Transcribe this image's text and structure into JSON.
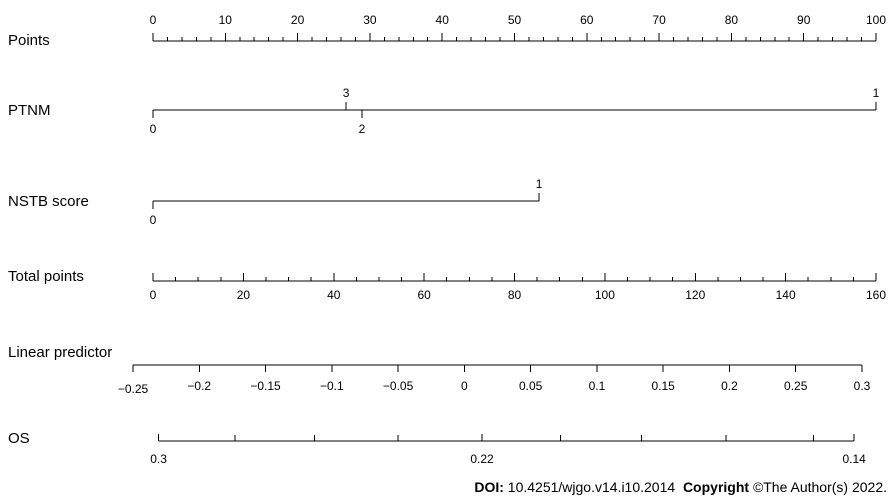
{
  "chart_data": {
    "type": "nomogram",
    "title": "",
    "rows": [
      {
        "label": "Points",
        "kind": "points",
        "min": 0,
        "max": 100,
        "major_ticks": [
          0,
          10,
          20,
          30,
          40,
          50,
          60,
          70,
          80,
          90,
          100
        ],
        "tick_labels": [
          "0",
          "10",
          "20",
          "30",
          "40",
          "50",
          "60",
          "70",
          "80",
          "90",
          "100"
        ],
        "minor_step": 2
      },
      {
        "label": "PTNM",
        "kind": "variable",
        "levels": [
          {
            "label": "0",
            "points": 0,
            "side": "below"
          },
          {
            "label": "3",
            "points": 26.7,
            "side": "above"
          },
          {
            "label": "2",
            "points": 28.9,
            "side": "below"
          },
          {
            "label": "1",
            "points": 100,
            "side": "above"
          }
        ]
      },
      {
        "label": "NSTB score",
        "kind": "variable",
        "levels": [
          {
            "label": "0",
            "points": 0,
            "side": "below"
          },
          {
            "label": "1",
            "points": 53.4,
            "side": "above"
          }
        ]
      },
      {
        "label": "Total points",
        "kind": "total",
        "min": 0,
        "max": 160,
        "major_ticks": [
          0,
          20,
          40,
          60,
          80,
          100,
          120,
          140,
          160
        ],
        "tick_labels": [
          "0",
          "20",
          "40",
          "60",
          "80",
          "100",
          "120",
          "140",
          "160"
        ],
        "minor_step": 5
      },
      {
        "label": "Linear predictor",
        "kind": "linear",
        "min": -0.25,
        "max": 0.3,
        "ticks": [
          -0.25,
          -0.2,
          -0.15,
          -0.1,
          -0.05,
          0,
          0.05,
          0.1,
          0.15,
          0.2,
          0.25,
          0.3
        ],
        "tick_labels": [
          "−0.25",
          "−0.2",
          "−0.15",
          "−0.1",
          "−0.05",
          "0",
          "0.05",
          "0.1",
          "0.15",
          "0.2",
          "0.25",
          "0.3"
        ]
      },
      {
        "label": "OS",
        "kind": "probability",
        "labeled_ticks": [
          {
            "label": "0.3",
            "lp": -0.2307
          },
          {
            "label": "0.22",
            "lp": 0.0133
          },
          {
            "label": "0.14",
            "lp": 0.2941
          }
        ],
        "unlabeled_ticks_lp": [
          -0.173,
          -0.113,
          -0.05,
          0.0725,
          0.1335,
          0.1975,
          0.2635
        ]
      }
    ]
  },
  "footer": {
    "doi_label": "DOI:",
    "doi_value": "10.4251/wjgo.v14.i10.2014",
    "copyright_label": "Copyright",
    "copyright_text": "©The Author(s) 2022."
  }
}
